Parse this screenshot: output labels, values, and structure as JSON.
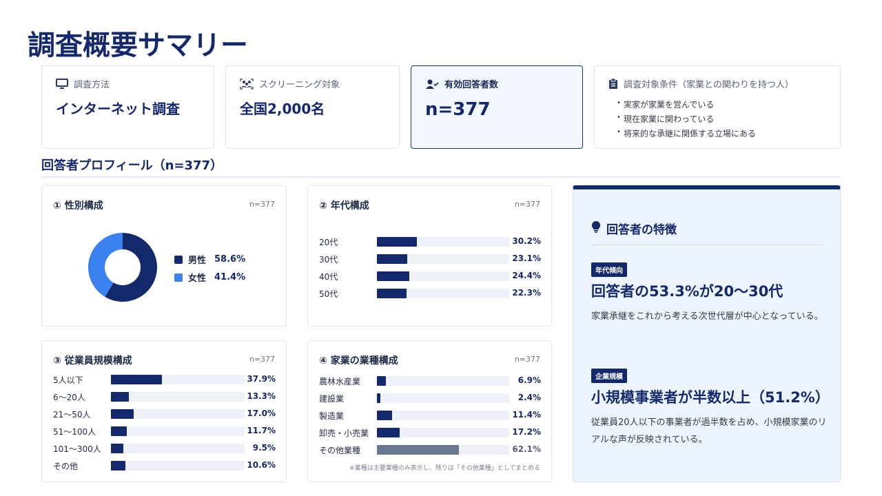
{
  "page": {
    "title": "調査概要サマリー",
    "section_title": "回答者プロフィール（n=377）"
  },
  "summary_cards": [
    {
      "label": "調査方法",
      "value": "インターネット調査",
      "icon": "monitor-icon"
    },
    {
      "label": "スクリーニング対象",
      "value": "全国2,000名",
      "icon": "people-group-icon"
    },
    {
      "label": "有効回答者数",
      "value": "n=377",
      "icon": "user-check-icon"
    },
    {
      "label": "調査対象条件（家業との関わりを持つ人）",
      "icon": "clipboard-icon",
      "items": [
        "実家が家業を営んでいる",
        "現在家業に関わっている",
        "将来的な承継に関係する立場にある"
      ]
    }
  ],
  "gender": {
    "title": "① 性別構成",
    "n": "n=377",
    "items": [
      {
        "label": "男性",
        "value": "58.6%",
        "pct": 58.6,
        "color": "#13296b"
      },
      {
        "label": "女性",
        "value": "41.4%",
        "pct": 41.4,
        "color": "#3b82f0"
      }
    ]
  },
  "age": {
    "title": "② 年代構成",
    "n": "n=377",
    "rows": [
      {
        "label": "20代",
        "value": "30.2%",
        "pct": 30.2
      },
      {
        "label": "30代",
        "value": "23.1%",
        "pct": 23.1
      },
      {
        "label": "40代",
        "value": "24.4%",
        "pct": 24.4
      },
      {
        "label": "50代",
        "value": "22.3%",
        "pct": 22.3
      }
    ]
  },
  "employees": {
    "title": "③ 従業員規模構成",
    "n": "n=377",
    "rows": [
      {
        "label": "5人以下",
        "value": "37.9%",
        "pct": 37.9
      },
      {
        "label": "6〜20人",
        "value": "13.3%",
        "pct": 13.3
      },
      {
        "label": "21〜50人",
        "value": "17.0%",
        "pct": 17.0
      },
      {
        "label": "51〜100人",
        "value": "11.7%",
        "pct": 11.7
      },
      {
        "label": "101〜300人",
        "value": "9.5%",
        "pct": 9.5
      },
      {
        "label": "その他",
        "value": "10.6%",
        "pct": 10.6
      }
    ]
  },
  "industry": {
    "title": "④ 家業の業種構成",
    "n": "n=377",
    "rows": [
      {
        "label": "農林水産業",
        "value": "6.9%",
        "pct": 6.9
      },
      {
        "label": "建設業",
        "value": "2.4%",
        "pct": 2.4
      },
      {
        "label": "製造業",
        "value": "11.4%",
        "pct": 11.4
      },
      {
        "label": "卸売・小売業",
        "value": "17.2%",
        "pct": 17.2
      },
      {
        "label": "その他業種",
        "value": "62.1%",
        "pct": 62.1,
        "muted": true
      }
    ],
    "note": "※業種は主要業種のみ表示し、残りは「その他業種」としてまとめる"
  },
  "features": {
    "title": "回答者の特徴",
    "blocks": [
      {
        "badge": "年代傾向",
        "heading": "回答者の53.3%が20〜30代",
        "text": "家業承継をこれから考える次世代層が中心となっている。"
      },
      {
        "badge": "企業規模",
        "heading": "小規模事業者が半数以上（51.2%）",
        "text": "従業員20人以下の事業者が過半数を占め、小規模家業のリアルな声が反映されている。"
      }
    ]
  },
  "colors": {
    "primary": "#13296b",
    "accent": "#3b82f0",
    "muted": "#6a7790",
    "track": "#eef2f8"
  }
}
